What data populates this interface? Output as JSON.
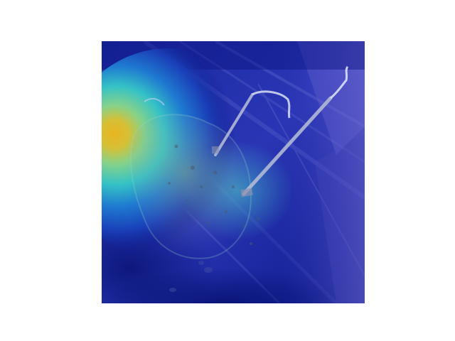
{
  "figure": {
    "background_color": "#ffffff",
    "content": "heatmap-overlay-photo",
    "colormap": "jet",
    "peak_color": "#e0b020",
    "low_color": "#0a1a8a"
  }
}
